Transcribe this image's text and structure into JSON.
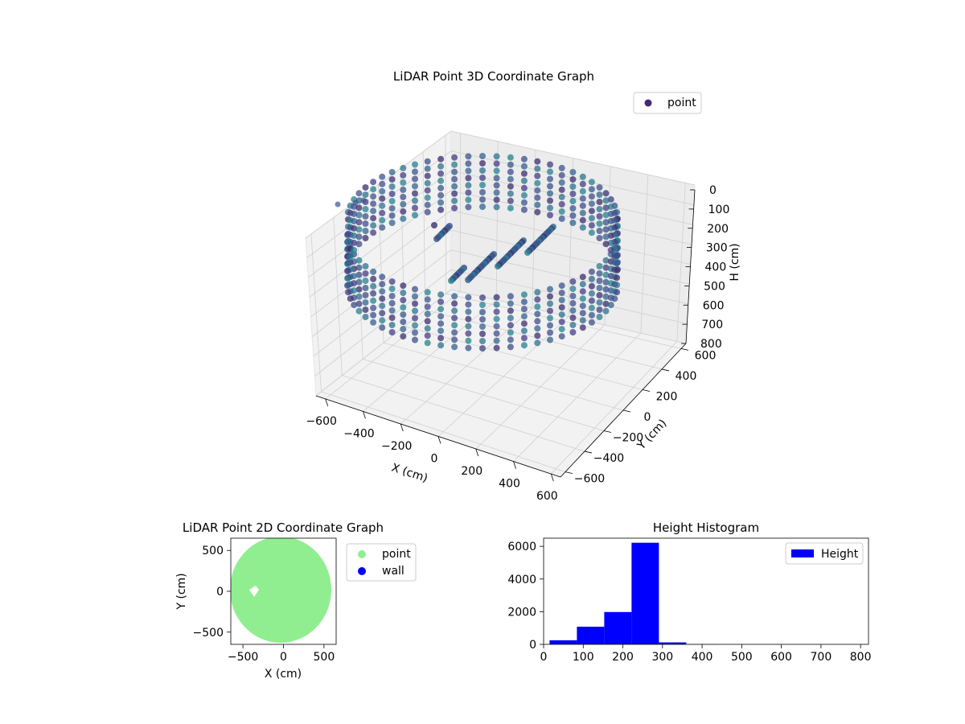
{
  "chart_data": [
    {
      "type": "scatter3d",
      "title": "LiDAR Point 3D Coordinate Graph",
      "xlabel": "X (cm)",
      "ylabel": "Y (cm)",
      "zlabel": "H (cm)",
      "xlim": [
        -650,
        650
      ],
      "ylim": [
        -650,
        650
      ],
      "zlim": [
        0,
        800
      ],
      "z_inverted": true,
      "x_ticks": [
        "−600",
        "−400",
        "−200",
        "0",
        "200",
        "400",
        "600"
      ],
      "y_ticks": [
        "−600",
        "−400",
        "−200",
        "0",
        "200",
        "400",
        "600"
      ],
      "z_ticks": [
        "0",
        "100",
        "200",
        "300",
        "400",
        "500",
        "600",
        "700",
        "800"
      ],
      "legend": {
        "position": "top-right",
        "entries": [
          "point"
        ]
      },
      "colormap": "viridis",
      "marker_color": "#482677",
      "grid": true,
      "description_shape": "ring of points (radius ≈ 550 cm) at heights ≈ 150–300 cm with interior clutter"
    },
    {
      "type": "scatter",
      "title": "LiDAR Point 2D Coordinate Graph",
      "xlabel": "X (cm)",
      "ylabel": "Y (cm)",
      "xlim": [
        -650,
        650
      ],
      "ylim": [
        -650,
        650
      ],
      "x_ticks": [
        "−500",
        "0",
        "500"
      ],
      "y_ticks": [
        "500",
        "0",
        "−500"
      ],
      "legend": {
        "position": "outside-right",
        "entries": [
          "point",
          "wall"
        ]
      },
      "series": [
        {
          "name": "point",
          "color": "#90ee90",
          "shape": "disk",
          "radius": 560
        },
        {
          "name": "wall",
          "color": "#0000ff",
          "points": []
        }
      ],
      "grid": false
    },
    {
      "type": "bar",
      "title": "Height Histogram",
      "xlim": [
        0,
        820
      ],
      "ylim": [
        0,
        6500
      ],
      "x_ticks": [
        "0",
        "100",
        "200",
        "300",
        "400",
        "500",
        "600",
        "700",
        "800"
      ],
      "y_ticks": [
        "0",
        "2000",
        "4000",
        "6000"
      ],
      "legend": {
        "position": "top-right",
        "entries": [
          "Height"
        ]
      },
      "bar_color": "#0000ff",
      "bins": [
        {
          "x0": 15,
          "x1": 84,
          "value": 250
        },
        {
          "x0": 84,
          "x1": 153,
          "value": 1080
        },
        {
          "x0": 153,
          "x1": 222,
          "value": 1980
        },
        {
          "x0": 222,
          "x1": 291,
          "value": 6220
        },
        {
          "x0": 291,
          "x1": 360,
          "value": 120
        },
        {
          "x0": 360,
          "x1": 429,
          "value": 10
        },
        {
          "x0": 429,
          "x1": 498,
          "value": 0
        },
        {
          "x0": 498,
          "x1": 567,
          "value": 0
        },
        {
          "x0": 567,
          "x1": 636,
          "value": 0
        },
        {
          "x0": 636,
          "x1": 705,
          "value": 0
        },
        {
          "x0": 705,
          "x1": 774,
          "value": 0
        },
        {
          "x0": 774,
          "x1": 800,
          "value": 0
        }
      ],
      "grid": false
    }
  ]
}
